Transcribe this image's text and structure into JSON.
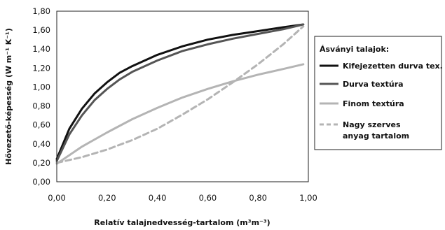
{
  "chart_data": {
    "type": "line",
    "xlabel": "Relatív talajnedvesség-tartalom (m³m⁻³)",
    "ylabel": "Hővezető-képesség (W m⁻¹ K⁻¹)",
    "xlim": [
      0,
      1
    ],
    "ylim": [
      0,
      1.8
    ],
    "x_ticks": [
      "0,00",
      "0,20",
      "0,40",
      "0,60",
      "0,80",
      "1,00"
    ],
    "y_ticks": [
      "0,00",
      "0,20",
      "0,40",
      "0,60",
      "0,80",
      "1,00",
      "1,20",
      "1,40",
      "1,60",
      "1,80"
    ],
    "grid": false,
    "legend_position": "right",
    "legend_title": "Ásványi talajok:",
    "series": [
      {
        "name": "Kifejezetten durva tex.",
        "color": "#111111",
        "dash": "solid",
        "x": [
          0.0,
          0.05,
          0.1,
          0.15,
          0.2,
          0.25,
          0.3,
          0.4,
          0.5,
          0.6,
          0.7,
          0.8,
          0.9,
          0.98
        ],
        "y": [
          0.24,
          0.56,
          0.77,
          0.93,
          1.05,
          1.15,
          1.22,
          1.34,
          1.43,
          1.5,
          1.55,
          1.59,
          1.63,
          1.66
        ]
      },
      {
        "name": "Durva textúra",
        "color": "#555555",
        "dash": "solid",
        "x": [
          0.0,
          0.05,
          0.1,
          0.15,
          0.2,
          0.25,
          0.3,
          0.4,
          0.5,
          0.6,
          0.7,
          0.8,
          0.9,
          0.98
        ],
        "y": [
          0.22,
          0.5,
          0.7,
          0.86,
          0.98,
          1.08,
          1.16,
          1.28,
          1.38,
          1.45,
          1.51,
          1.56,
          1.61,
          1.66
        ]
      },
      {
        "name": "Finom textúra",
        "color": "#b4b4b4",
        "dash": "solid",
        "x": [
          0.0,
          0.1,
          0.2,
          0.3,
          0.4,
          0.5,
          0.6,
          0.7,
          0.8,
          0.9,
          0.98
        ],
        "y": [
          0.19,
          0.37,
          0.52,
          0.66,
          0.78,
          0.89,
          0.98,
          1.06,
          1.13,
          1.19,
          1.24
        ]
      },
      {
        "name": "Nagy szerves anyag tartalom",
        "color": "#b4b4b4",
        "dash": "dashed",
        "x": [
          0.0,
          0.1,
          0.2,
          0.3,
          0.4,
          0.5,
          0.6,
          0.7,
          0.8,
          0.9,
          0.98
        ],
        "y": [
          0.2,
          0.26,
          0.34,
          0.44,
          0.56,
          0.71,
          0.87,
          1.05,
          1.24,
          1.45,
          1.64
        ]
      }
    ]
  }
}
